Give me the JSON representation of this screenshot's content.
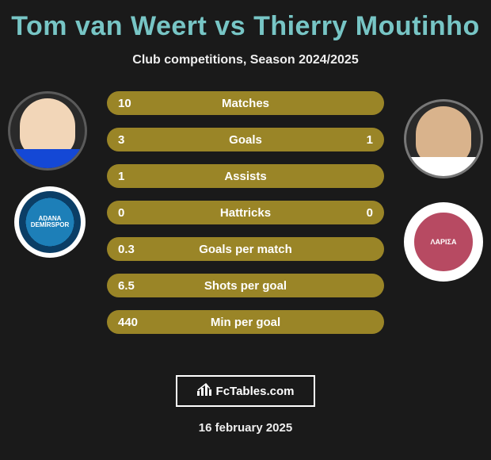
{
  "header": {
    "title_pre": "Tom van Weert ",
    "title_vs": "vs",
    "title_post": " Thierry Moutinho",
    "subtitle": "Club competitions, Season 2024/2025",
    "title_color": "#77c5c5"
  },
  "players": {
    "left": {
      "name": "Tom van Weert",
      "face_bg": "#f2d6b8",
      "shirt": "#1448d6"
    },
    "right": {
      "name": "Thierry Moutinho",
      "face_bg": "#d9b38c",
      "shirt": "#ffffff"
    }
  },
  "clubs": {
    "left": {
      "label_top": "ADANA",
      "label_bottom": "DEMİRSPOR"
    },
    "right": {
      "label": "ΛΑΡΙΣΑ"
    }
  },
  "stats": {
    "row_bg": "#9a8527",
    "rows": [
      {
        "label": "Matches",
        "left": "10",
        "right": ""
      },
      {
        "label": "Goals",
        "left": "3",
        "right": "1"
      },
      {
        "label": "Assists",
        "left": "1",
        "right": ""
      },
      {
        "label": "Hattricks",
        "left": "0",
        "right": "0"
      },
      {
        "label": "Goals per match",
        "left": "0.3",
        "right": ""
      },
      {
        "label": "Shots per goal",
        "left": "6.5",
        "right": ""
      },
      {
        "label": "Min per goal",
        "left": "440",
        "right": ""
      }
    ]
  },
  "footer": {
    "brand": "FcTables.com",
    "date": "16 february 2025"
  },
  "style": {
    "page_bg": "#1a1a1a",
    "text_color": "#ffffff",
    "title_fontsize": 34,
    "subtitle_fontsize": 16,
    "stat_fontsize": 15
  }
}
